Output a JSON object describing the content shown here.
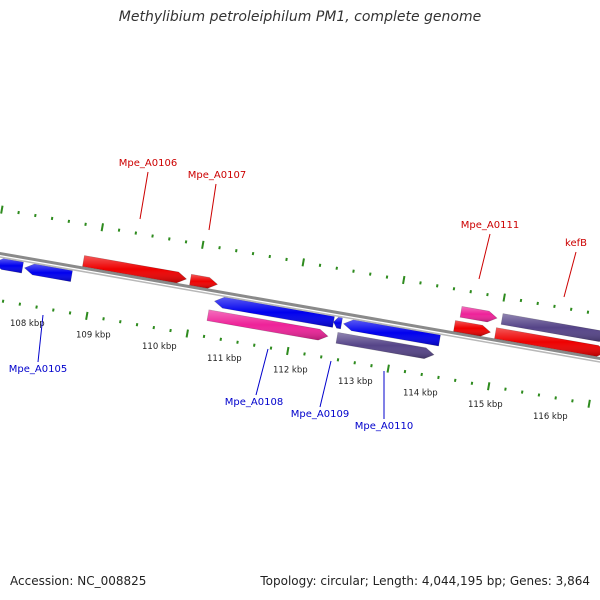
{
  "title": "Methylibium petroleiphilum PM1, complete genome",
  "footer": {
    "accession": "Accession: NC_008825",
    "topology": "Topology: circular; Length: 4,044,195 bp; Genes: 3,864"
  },
  "colors": {
    "backbone": "#8a8a8a",
    "tick": "#2e8b1e",
    "forward_label": "#cc0000",
    "reverse_label": "#0000cc",
    "red": "#ee0000",
    "pink": "#ee2299",
    "blue": "#0000ee",
    "purple": "#554488"
  },
  "scale": {
    "kbp_labels": [
      "108 kbp",
      "109 kbp",
      "110 kbp",
      "111 kbp",
      "112 kbp",
      "113 kbp",
      "114 kbp",
      "115 kbp",
      "116 kbp"
    ]
  },
  "genes": [
    {
      "label": "Mpe_A0106",
      "strand": "forward"
    },
    {
      "label": "Mpe_A0107",
      "strand": "forward"
    },
    {
      "label": "Mpe_A0111",
      "strand": "forward"
    },
    {
      "label": "kefB",
      "strand": "forward"
    },
    {
      "label": "Mpe_A0105",
      "strand": "reverse"
    },
    {
      "label": "Mpe_A0108",
      "strand": "reverse"
    },
    {
      "label": "Mpe_A0109",
      "strand": "reverse"
    },
    {
      "label": "Mpe_A0110",
      "strand": "reverse"
    }
  ]
}
